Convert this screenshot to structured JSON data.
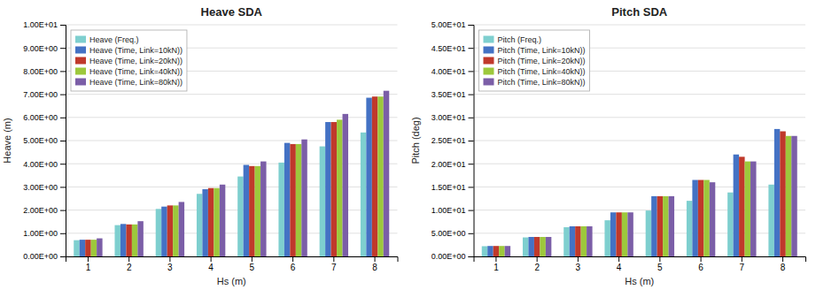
{
  "chart_data": [
    {
      "type": "bar",
      "title": "Heave SDA",
      "x_label": "Hs (m)",
      "y_label": "Heave (m)",
      "categories": [
        "1",
        "2",
        "3",
        "4",
        "5",
        "6",
        "7",
        "8"
      ],
      "series": [
        {
          "name": "Heave (Freq.)",
          "color": "#7ecfcf",
          "values": [
            0.7,
            1.35,
            2.05,
            2.7,
            3.45,
            4.05,
            4.75,
            5.35
          ]
        },
        {
          "name": "Heave (Time, Link=10kN))",
          "color": "#4472c4",
          "values": [
            0.72,
            1.4,
            2.15,
            2.9,
            3.95,
            4.9,
            5.8,
            6.85
          ]
        },
        {
          "name": "Heave (Time, Link=20kN))",
          "color": "#c0392b",
          "values": [
            0.72,
            1.38,
            2.2,
            2.95,
            3.9,
            4.85,
            5.8,
            6.9
          ]
        },
        {
          "name": "Heave (Time, Link=40kN))",
          "color": "#9dc83c",
          "values": [
            0.72,
            1.38,
            2.2,
            2.95,
            3.9,
            4.85,
            5.9,
            6.9
          ]
        },
        {
          "name": "Heave (Time, Link=80kN))",
          "color": "#7b5ea7",
          "values": [
            0.78,
            1.52,
            2.35,
            3.1,
            4.1,
            5.05,
            6.15,
            7.15
          ]
        }
      ],
      "ylim": [
        0,
        10
      ],
      "yticks": [
        {
          "value": 0,
          "label": "0.00E+00"
        },
        {
          "value": 1,
          "label": "1.00E+00"
        },
        {
          "value": 2,
          "label": "2.00E+00"
        },
        {
          "value": 3,
          "label": "3.00E+00"
        },
        {
          "value": 4,
          "label": "4.00E+00"
        },
        {
          "value": 5,
          "label": "5.00E+00"
        },
        {
          "value": 6,
          "label": "6.00E+00"
        },
        {
          "value": 7,
          "label": "7.00E+00"
        },
        {
          "value": 8,
          "label": "8.00E+00"
        },
        {
          "value": 9,
          "label": "9.00E+00"
        },
        {
          "value": 10,
          "label": "1.00E+01"
        }
      ],
      "grid": true,
      "legend": "upper left"
    },
    {
      "type": "bar",
      "title": "Pitch SDA",
      "x_label": "Hs (m)",
      "y_label": "Pitch (deg)",
      "categories": [
        "1",
        "2",
        "3",
        "4",
        "5",
        "6",
        "7",
        "8"
      ],
      "series": [
        {
          "name": "Pitch (Freq.)",
          "color": "#7ecfcf",
          "values": [
            2.2,
            4.1,
            6.3,
            7.8,
            9.9,
            12.0,
            13.8,
            15.5
          ]
        },
        {
          "name": "Pitch (Time, Link=10kN))",
          "color": "#4472c4",
          "values": [
            2.25,
            4.2,
            6.5,
            9.5,
            13.0,
            16.5,
            22.0,
            27.5
          ]
        },
        {
          "name": "Pitch (Time, Link=20kN))",
          "color": "#c0392b",
          "values": [
            2.25,
            4.2,
            6.5,
            9.5,
            13.0,
            16.5,
            21.5,
            27.0
          ]
        },
        {
          "name": "Pitch (Time, Link=40kN))",
          "color": "#9dc83c",
          "values": [
            2.25,
            4.2,
            6.5,
            9.5,
            13.0,
            16.5,
            20.5,
            26.0
          ]
        },
        {
          "name": "Pitch (Time, Link=80kN))",
          "color": "#7b5ea7",
          "values": [
            2.25,
            4.2,
            6.5,
            9.5,
            13.0,
            16.0,
            20.5,
            26.0
          ]
        }
      ],
      "ylim": [
        0,
        50
      ],
      "yticks": [
        {
          "value": 0,
          "label": "0.00E+00"
        },
        {
          "value": 5,
          "label": "5.00E+00"
        },
        {
          "value": 10,
          "label": "1.00E+01"
        },
        {
          "value": 15,
          "label": "1.50E+01"
        },
        {
          "value": 20,
          "label": "2.00E+01"
        },
        {
          "value": 25,
          "label": "2.50E+01"
        },
        {
          "value": 30,
          "label": "3.00E+01"
        },
        {
          "value": 35,
          "label": "3.50E+01"
        },
        {
          "value": 40,
          "label": "4.00E+01"
        },
        {
          "value": 45,
          "label": "4.50E+01"
        },
        {
          "value": 50,
          "label": "5.00E+01"
        }
      ],
      "grid": true,
      "legend": "upper left"
    }
  ]
}
